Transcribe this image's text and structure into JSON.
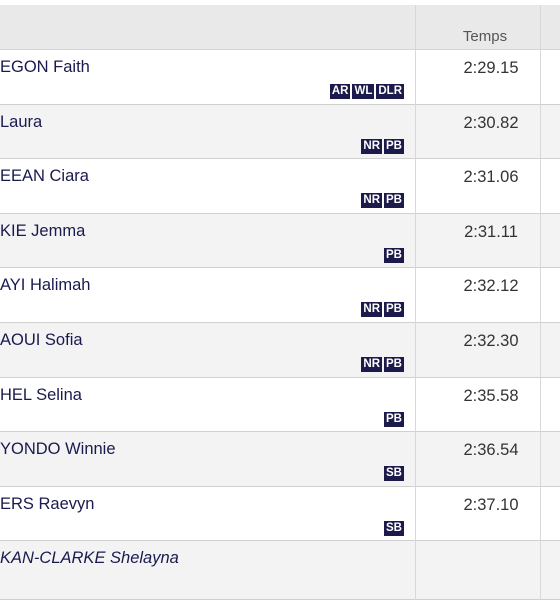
{
  "header": {
    "time": "Temps"
  },
  "rows": [
    {
      "name": "EGON Faith",
      "badges": [
        "AR",
        "WL",
        "DLR"
      ],
      "time": "2:29.15"
    },
    {
      "name": "Laura",
      "badges": [
        "NR",
        "PB"
      ],
      "time": "2:30.82"
    },
    {
      "name": "EEAN Ciara",
      "badges": [
        "NR",
        "PB"
      ],
      "time": "2:31.06"
    },
    {
      "name": "KIE Jemma",
      "badges": [
        "PB"
      ],
      "time": "2:31.11"
    },
    {
      "name": "AYI Halimah",
      "badges": [
        "NR",
        "PB"
      ],
      "time": "2:32.12"
    },
    {
      "name": "AOUI Sofia",
      "badges": [
        "NR",
        "PB"
      ],
      "time": "2:32.30"
    },
    {
      "name": "HEL Selina",
      "badges": [
        "PB"
      ],
      "time": "2:35.58"
    },
    {
      "name": "YONDO Winnie",
      "badges": [
        "SB"
      ],
      "time": "2:36.54"
    },
    {
      "name": "ERS Raevyn",
      "badges": [
        "SB"
      ],
      "time": "2:37.10"
    },
    {
      "name": "KAN-CLARKE Shelayna",
      "badges": [],
      "italic": true
    }
  ]
}
